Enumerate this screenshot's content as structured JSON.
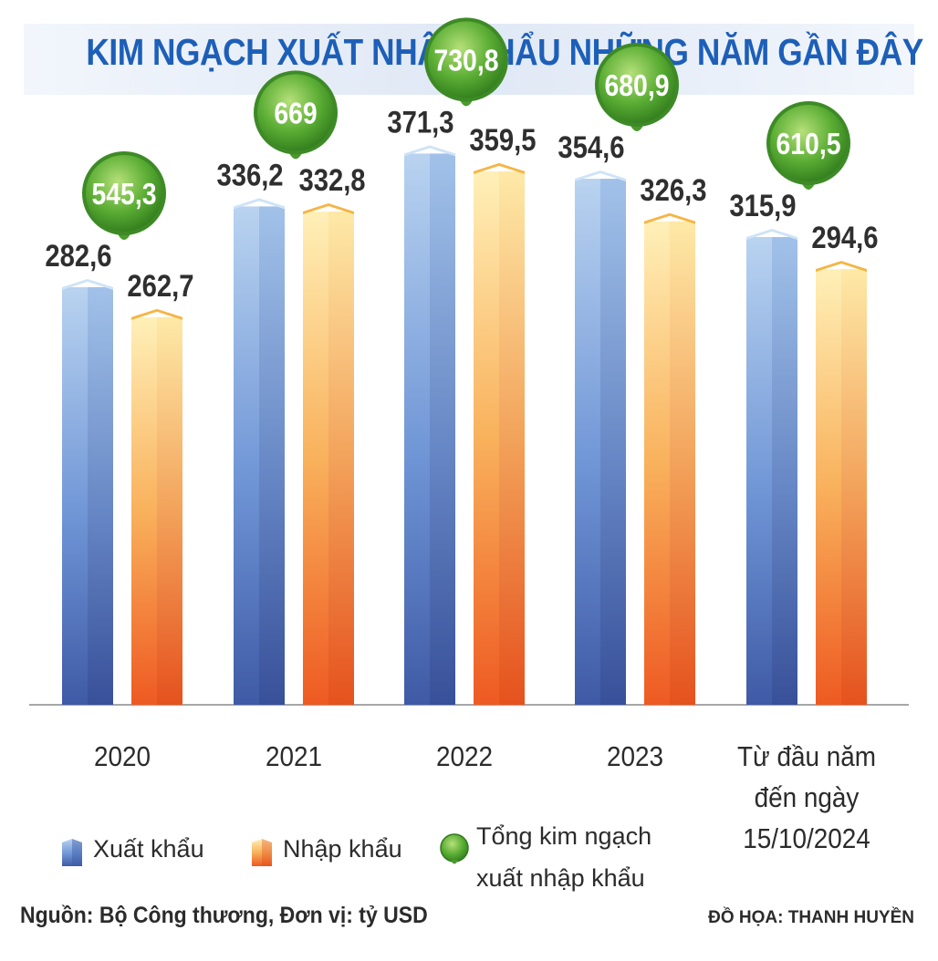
{
  "title": "KIM NGẠCH XUẤT NHẬP KHẨU NHỮNG NĂM GẦN ĐÂY",
  "chart_data": {
    "type": "bar",
    "categories": [
      "2020",
      "2021",
      "2022",
      "2023",
      "Từ đầu năm\nđến ngày\n15/10/2024"
    ],
    "series": [
      {
        "name": "Xuất khẩu",
        "values": [
          282.6,
          336.2,
          371.3,
          354.6,
          315.9
        ],
        "labels": [
          "282,6",
          "336,2",
          "371,3",
          "354,6",
          "315,9"
        ],
        "color": "#4a73c2"
      },
      {
        "name": "Nhập khẩu",
        "values": [
          262.7,
          332.8,
          359.5,
          326.3,
          294.6
        ],
        "labels": [
          "262,7",
          "332,8",
          "359,5",
          "326,3",
          "294,6"
        ],
        "color": "#f5a24a"
      }
    ],
    "totals": {
      "name": "Tổng kim ngạch xuất nhập khẩu",
      "values": [
        545.3,
        669,
        730.8,
        680.9,
        610.5
      ],
      "labels": [
        "545,3",
        "669",
        "730,8",
        "680,9",
        "610,5"
      ],
      "color": "#5aae3a"
    },
    "ylim": [
      0,
      400
    ],
    "grid": false,
    "legend_position": "bottom-left"
  },
  "legend": {
    "export_label": "Xuất khẩu",
    "import_label": "Nhập khẩu",
    "total_label": "Tổng kim ngạch\nxuất nhập khẩu"
  },
  "footer": {
    "source": "Nguồn: Bộ Công thương, Đơn vị: tỷ USD",
    "credit": "ĐỒ HỌA: THANH HUYỀN"
  }
}
